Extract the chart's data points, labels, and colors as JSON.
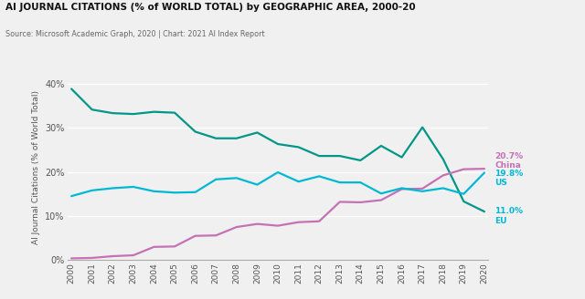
{
  "title": "AI JOURNAL CITATIONS (% of WORLD TOTAL) by GEOGRAPHIC AREA, 2000-20",
  "source": "Source: Microsoft Academic Graph, 2020 | Chart: 2021 AI Index Report",
  "ylabel": "AI Journal Citations (% of World Total)",
  "years": [
    2000,
    2001,
    2002,
    2003,
    2004,
    2005,
    2006,
    2007,
    2008,
    2009,
    2010,
    2011,
    2012,
    2013,
    2014,
    2015,
    2016,
    2017,
    2018,
    2019,
    2020
  ],
  "china": [
    0.4,
    0.5,
    0.9,
    1.1,
    3.0,
    3.1,
    5.5,
    5.6,
    7.5,
    8.2,
    7.8,
    8.6,
    8.8,
    13.2,
    13.1,
    13.6,
    16.1,
    16.2,
    19.2,
    20.6,
    20.7
  ],
  "us": [
    14.5,
    15.8,
    16.3,
    16.6,
    15.6,
    15.3,
    15.4,
    18.3,
    18.6,
    17.1,
    19.9,
    17.8,
    19.0,
    17.6,
    17.6,
    15.1,
    16.3,
    15.6,
    16.3,
    15.0,
    19.8
  ],
  "eu": [
    38.8,
    34.1,
    33.3,
    33.1,
    33.6,
    33.4,
    29.1,
    27.6,
    27.6,
    28.9,
    26.3,
    25.6,
    23.6,
    23.6,
    22.6,
    25.9,
    23.3,
    30.1,
    22.9,
    13.3,
    11.0
  ],
  "china_color": "#c471b5",
  "us_color": "#00b8d4",
  "eu_color": "#009688",
  "background_color": "#f0f0f0",
  "ylim": [
    0,
    42
  ],
  "yticks": [
    0,
    10,
    20,
    30,
    40
  ],
  "ytick_labels": [
    "0%",
    "10%",
    "20%",
    "30%",
    "40%"
  ]
}
